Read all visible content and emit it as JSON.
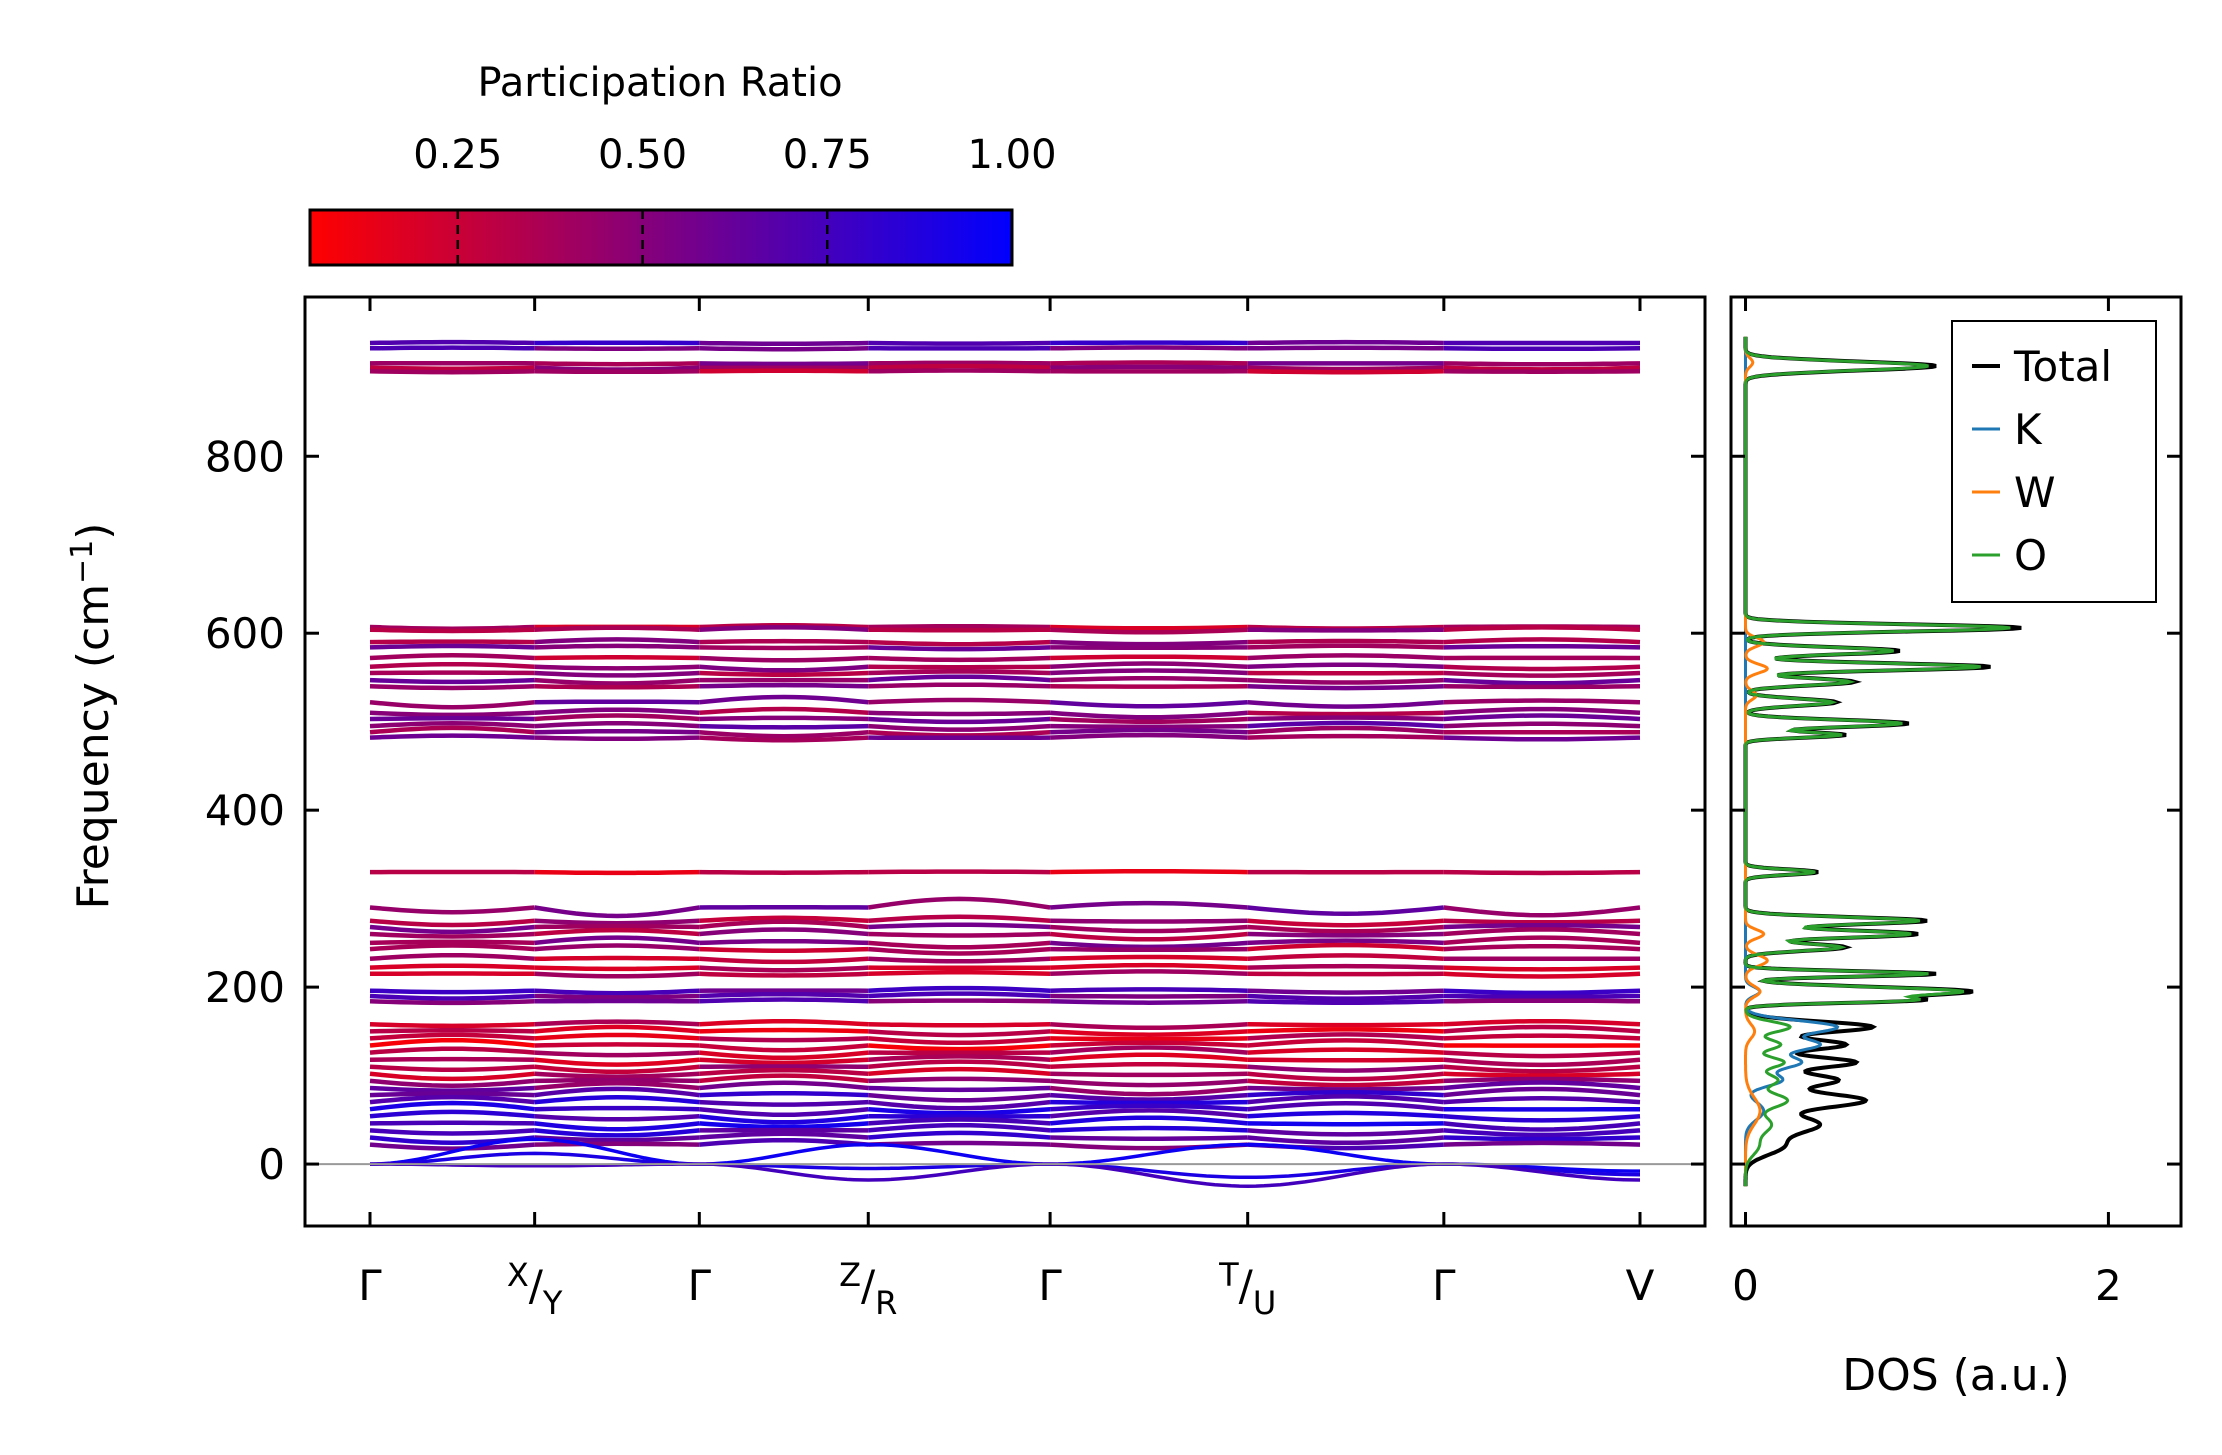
{
  "chart_data": [
    {
      "type": "line",
      "name": "phonon-dispersion",
      "ylabel": "Frequency (cm",
      "ylabel_sup": "−1",
      "ylabel_close": ")",
      "ylim": [
        -70,
        980
      ],
      "yticks": [
        0,
        200,
        400,
        600,
        800
      ],
      "path_points": [
        {
          "main": "Γ",
          "sup": "",
          "sub": ""
        },
        {
          "main": "/",
          "sup": "X",
          "sub": "Y"
        },
        {
          "main": "Γ",
          "sup": "",
          "sub": ""
        },
        {
          "main": "/",
          "sup": "Z",
          "sub": "R"
        },
        {
          "main": "Γ",
          "sup": "",
          "sub": ""
        },
        {
          "main": "/",
          "sup": "T",
          "sub": "U"
        },
        {
          "main": "Γ",
          "sup": "",
          "sub": ""
        },
        {
          "main": "V",
          "sup": "",
          "sub": ""
        }
      ],
      "path_positions": [
        0,
        1.15,
        2.3,
        3.48,
        4.75,
        6.13,
        7.5,
        8.87
      ],
      "colorbar": {
        "title": "Participation Ratio",
        "ticks": [
          "0.25",
          "0.50",
          "0.75",
          "1.00"
        ],
        "tick_values": [
          0.25,
          0.5,
          0.75,
          1.0
        ],
        "range": [
          0.05,
          1.0
        ],
        "color_low": "#ff0000",
        "color_high": "#0000ff"
      },
      "zero_line": 0,
      "bands": [
        {
          "f": 928,
          "pr": 0.7,
          "amp": 1
        },
        {
          "f": 922,
          "pr": 0.6,
          "amp": 1
        },
        {
          "f": 905,
          "pr": 0.45,
          "amp": 1
        },
        {
          "f": 900,
          "pr": 0.4,
          "amp": 2
        },
        {
          "f": 896,
          "pr": 0.35,
          "amp": 1
        },
        {
          "f": 607,
          "pr": 0.3,
          "amp": 2
        },
        {
          "f": 604,
          "pr": 0.4,
          "amp": 3
        },
        {
          "f": 590,
          "pr": 0.4,
          "amp": 3
        },
        {
          "f": 584,
          "pr": 0.5,
          "amp": 2
        },
        {
          "f": 572,
          "pr": 0.35,
          "amp": 3
        },
        {
          "f": 562,
          "pr": 0.45,
          "amp": 4
        },
        {
          "f": 555,
          "pr": 0.4,
          "amp": 3
        },
        {
          "f": 547,
          "pr": 0.5,
          "amp": 4
        },
        {
          "f": 540,
          "pr": 0.45,
          "amp": 2
        },
        {
          "f": 522,
          "pr": 0.55,
          "amp": 6
        },
        {
          "f": 510,
          "pr": 0.45,
          "amp": 5
        },
        {
          "f": 503,
          "pr": 0.5,
          "amp": 4
        },
        {
          "f": 495,
          "pr": 0.55,
          "amp": 4
        },
        {
          "f": 488,
          "pr": 0.45,
          "amp": 5
        },
        {
          "f": 482,
          "pr": 0.5,
          "amp": 3
        },
        {
          "f": 330,
          "pr": 0.25,
          "amp": 1
        },
        {
          "f": 290,
          "pr": 0.55,
          "amp": 10
        },
        {
          "f": 275,
          "pr": 0.35,
          "amp": 5
        },
        {
          "f": 268,
          "pr": 0.45,
          "amp": 6
        },
        {
          "f": 260,
          "pr": 0.4,
          "amp": 6
        },
        {
          "f": 250,
          "pr": 0.5,
          "amp": 6
        },
        {
          "f": 243,
          "pr": 0.35,
          "amp": 5
        },
        {
          "f": 232,
          "pr": 0.3,
          "amp": 4
        },
        {
          "f": 222,
          "pr": 0.25,
          "amp": 3
        },
        {
          "f": 215,
          "pr": 0.3,
          "amp": 3
        },
        {
          "f": 196,
          "pr": 0.7,
          "amp": 3
        },
        {
          "f": 190,
          "pr": 0.65,
          "amp": 3
        },
        {
          "f": 184,
          "pr": 0.6,
          "amp": 2
        },
        {
          "f": 158,
          "pr": 0.25,
          "amp": 4
        },
        {
          "f": 150,
          "pr": 0.2,
          "amp": 5
        },
        {
          "f": 142,
          "pr": 0.25,
          "amp": 5
        },
        {
          "f": 134,
          "pr": 0.2,
          "amp": 6
        },
        {
          "f": 126,
          "pr": 0.3,
          "amp": 6
        },
        {
          "f": 118,
          "pr": 0.25,
          "amp": 6
        },
        {
          "f": 110,
          "pr": 0.35,
          "amp": 6
        },
        {
          "f": 102,
          "pr": 0.3,
          "amp": 6
        },
        {
          "f": 94,
          "pr": 0.4,
          "amp": 6
        },
        {
          "f": 86,
          "pr": 0.55,
          "amp": 7
        },
        {
          "f": 78,
          "pr": 0.7,
          "amp": 7
        },
        {
          "f": 70,
          "pr": 0.75,
          "amp": 7
        },
        {
          "f": 62,
          "pr": 0.8,
          "amp": 7
        },
        {
          "f": 54,
          "pr": 0.8,
          "amp": 7
        },
        {
          "f": 46,
          "pr": 0.85,
          "amp": 7
        },
        {
          "f": 38,
          "pr": 0.75,
          "amp": 6
        },
        {
          "f": 30,
          "pr": 0.7,
          "amp": 6
        },
        {
          "f": 22,
          "pr": 0.6,
          "amp": 5
        }
      ],
      "acoustic": [
        {
          "pr": 0.95,
          "y": [
            0,
            28,
            0,
            22,
            0,
            22,
            0,
            -8
          ]
        },
        {
          "pr": 0.9,
          "y": [
            0,
            12,
            0,
            -5,
            0,
            -15,
            0,
            -12
          ]
        },
        {
          "pr": 0.75,
          "y": [
            0,
            -2,
            0,
            -18,
            0,
            -25,
            0,
            -18
          ]
        }
      ]
    },
    {
      "type": "line",
      "name": "density-of-states",
      "xlabel": "DOS (a.u.)",
      "xlim": [
        -0.08,
        2.4
      ],
      "xticks": [
        0,
        2
      ],
      "legend_position": "top-right",
      "series": [
        {
          "name": "Total",
          "color": "#000000"
        },
        {
          "name": "K",
          "color": "#1f77b4"
        },
        {
          "name": "W",
          "color": "#ff7f0e"
        },
        {
          "name": "O",
          "color": "#2ca02c"
        }
      ],
      "total_peaks": [
        {
          "f": 902,
          "a": 1.05,
          "w": 5
        },
        {
          "f": 606,
          "a": 1.52,
          "w": 4
        },
        {
          "f": 580,
          "a": 0.85,
          "w": 4
        },
        {
          "f": 562,
          "a": 1.35,
          "w": 4
        },
        {
          "f": 545,
          "a": 0.6,
          "w": 4
        },
        {
          "f": 522,
          "a": 0.5,
          "w": 4
        },
        {
          "f": 498,
          "a": 0.9,
          "w": 4
        },
        {
          "f": 485,
          "a": 0.55,
          "w": 3
        },
        {
          "f": 330,
          "a": 0.4,
          "w": 3
        },
        {
          "f": 275,
          "a": 1.0,
          "w": 4
        },
        {
          "f": 260,
          "a": 0.95,
          "w": 4
        },
        {
          "f": 245,
          "a": 0.55,
          "w": 4
        },
        {
          "f": 215,
          "a": 1.05,
          "w": 3
        },
        {
          "f": 195,
          "a": 1.25,
          "w": 5
        },
        {
          "f": 185,
          "a": 0.8,
          "w": 3
        },
        {
          "f": 155,
          "a": 0.7,
          "w": 6
        },
        {
          "f": 135,
          "a": 0.55,
          "w": 6
        },
        {
          "f": 115,
          "a": 0.6,
          "w": 6
        },
        {
          "f": 95,
          "a": 0.5,
          "w": 7
        },
        {
          "f": 72,
          "a": 0.65,
          "w": 8
        },
        {
          "f": 45,
          "a": 0.4,
          "w": 10
        },
        {
          "f": 20,
          "a": 0.2,
          "w": 10
        }
      ],
      "k_peaks": [
        {
          "f": 155,
          "a": 0.5,
          "w": 7
        },
        {
          "f": 135,
          "a": 0.4,
          "w": 7
        },
        {
          "f": 115,
          "a": 0.3,
          "w": 7
        },
        {
          "f": 95,
          "a": 0.2,
          "w": 7
        },
        {
          "f": 195,
          "a": 0.08,
          "w": 5
        },
        {
          "f": 60,
          "a": 0.1,
          "w": 10
        }
      ],
      "w_peaks": [
        {
          "f": 906,
          "a": 0.04,
          "w": 5
        },
        {
          "f": 590,
          "a": 0.1,
          "w": 5
        },
        {
          "f": 560,
          "a": 0.12,
          "w": 5
        },
        {
          "f": 530,
          "a": 0.06,
          "w": 5
        },
        {
          "f": 260,
          "a": 0.1,
          "w": 5
        },
        {
          "f": 230,
          "a": 0.12,
          "w": 6
        },
        {
          "f": 195,
          "a": 0.08,
          "w": 6
        },
        {
          "f": 150,
          "a": 0.05,
          "w": 8
        },
        {
          "f": 60,
          "a": 0.08,
          "w": 15
        }
      ]
    }
  ]
}
